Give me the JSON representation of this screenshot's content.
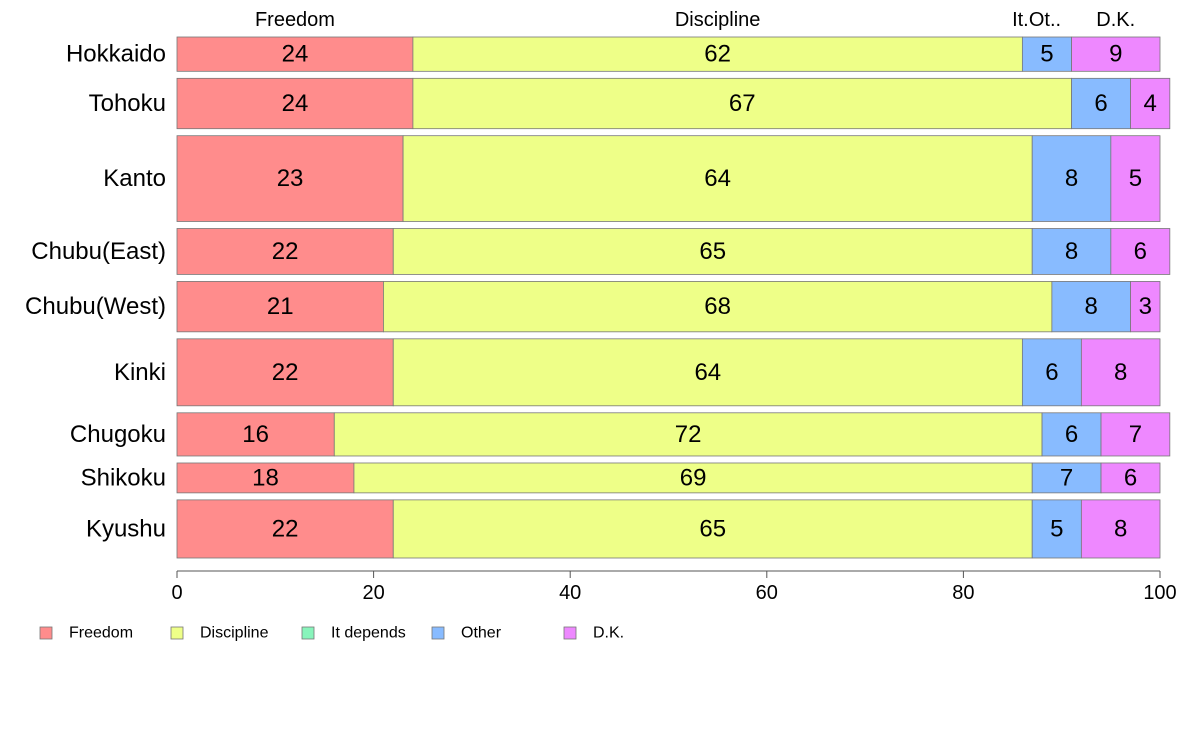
{
  "chart_data": {
    "type": "bar",
    "orientation": "horizontal",
    "stacked": true,
    "percent": true,
    "xlim": [
      0,
      100
    ],
    "xticks": [
      0,
      20,
      40,
      60,
      80,
      100
    ],
    "grid": false,
    "legend_position": "bottom-left",
    "categories": [
      "Hokkaido",
      "Tohoku",
      "Kanto",
      "Chubu(East)",
      "Chubu(West)",
      "Kinki",
      "Chugoku",
      "Shikoku",
      "Kyushu"
    ],
    "bar_weights": [
      0.62,
      0.91,
      1.55,
      0.83,
      0.91,
      1.21,
      0.78,
      0.54,
      1.05
    ],
    "series": [
      {
        "name": "Freedom",
        "color": "#FF8C8C",
        "values": [
          24,
          24,
          23,
          22,
          21,
          22,
          16,
          18,
          22
        ]
      },
      {
        "name": "Discipline",
        "color": "#EEFF88",
        "values": [
          62,
          67,
          64,
          65,
          68,
          64,
          72,
          69,
          65
        ]
      },
      {
        "name": "It depends",
        "color": "#88F4BB",
        "values": [
          0,
          0,
          0,
          0,
          0,
          0,
          0,
          0,
          0
        ]
      },
      {
        "name": "Other",
        "color": "#88BBFF",
        "values": [
          5,
          6,
          8,
          8,
          8,
          6,
          6,
          7,
          5
        ]
      },
      {
        "name": "D.K.",
        "color": "#EE88FF",
        "values": [
          9,
          4,
          5,
          6,
          3,
          8,
          7,
          6,
          8
        ]
      }
    ],
    "top_labels": [
      {
        "text": "Freedom",
        "pos": 12
      },
      {
        "text": "Discipline",
        "pos": 55
      },
      {
        "text": "It.",
        "pos": 85.8
      },
      {
        "text": "Ot..",
        "pos": 88.3
      },
      {
        "text": "D.K.",
        "pos": 95.5
      }
    ]
  }
}
